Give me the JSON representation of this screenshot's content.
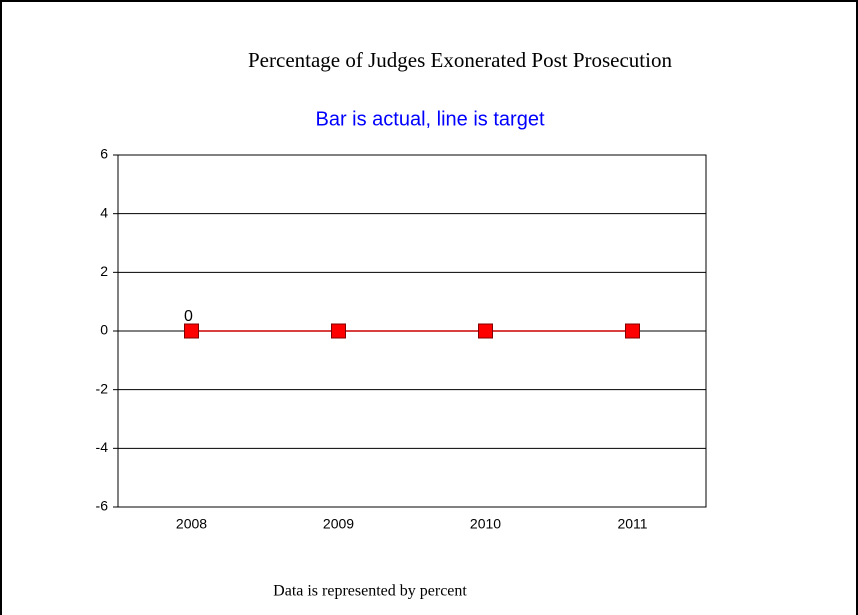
{
  "chart_data": {
    "type": "bar",
    "title": "Percentage of Judges Exonerated Post Prosecution",
    "subtitle": "Bar is actual, line is target",
    "footnote": "Data is represented by percent",
    "categories": [
      "2008",
      "2009",
      "2010",
      "2011"
    ],
    "series": [
      {
        "type": "bar",
        "color": "#0000ff",
        "values": [
          0,
          null,
          null,
          null
        ],
        "value_labels": [
          "0",
          null,
          null,
          null
        ]
      },
      {
        "type": "line",
        "color": "#cc0000",
        "marker_color": "#ff0000",
        "values": [
          0,
          0,
          0,
          0
        ]
      }
    ],
    "ylim": [
      -6,
      6
    ],
    "yticks": [
      -6,
      -4,
      -2,
      0,
      2,
      4,
      6
    ],
    "grid": true
  }
}
